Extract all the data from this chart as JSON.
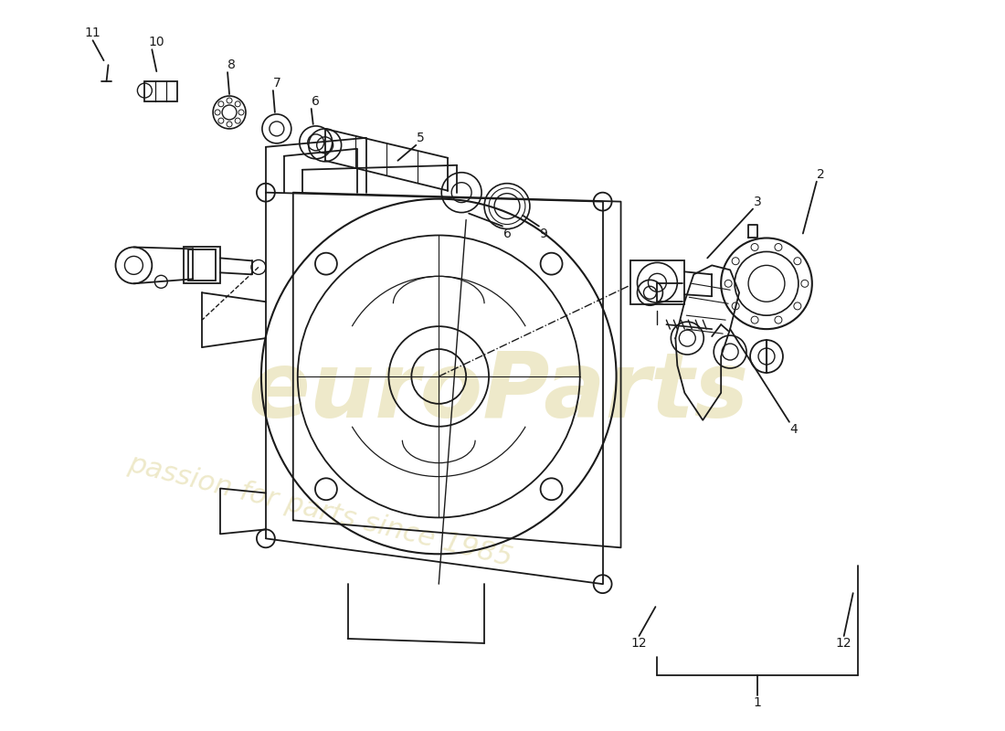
{
  "background_color": "#ffffff",
  "line_color": "#1a1a1a",
  "watermark_text1": "euroParts",
  "watermark_text2": "passion for parts since 1985",
  "watermark_color": "#c8b850",
  "fig_width": 11.0,
  "fig_height": 8.0,
  "dpi": 100,
  "label_fontsize": 10
}
